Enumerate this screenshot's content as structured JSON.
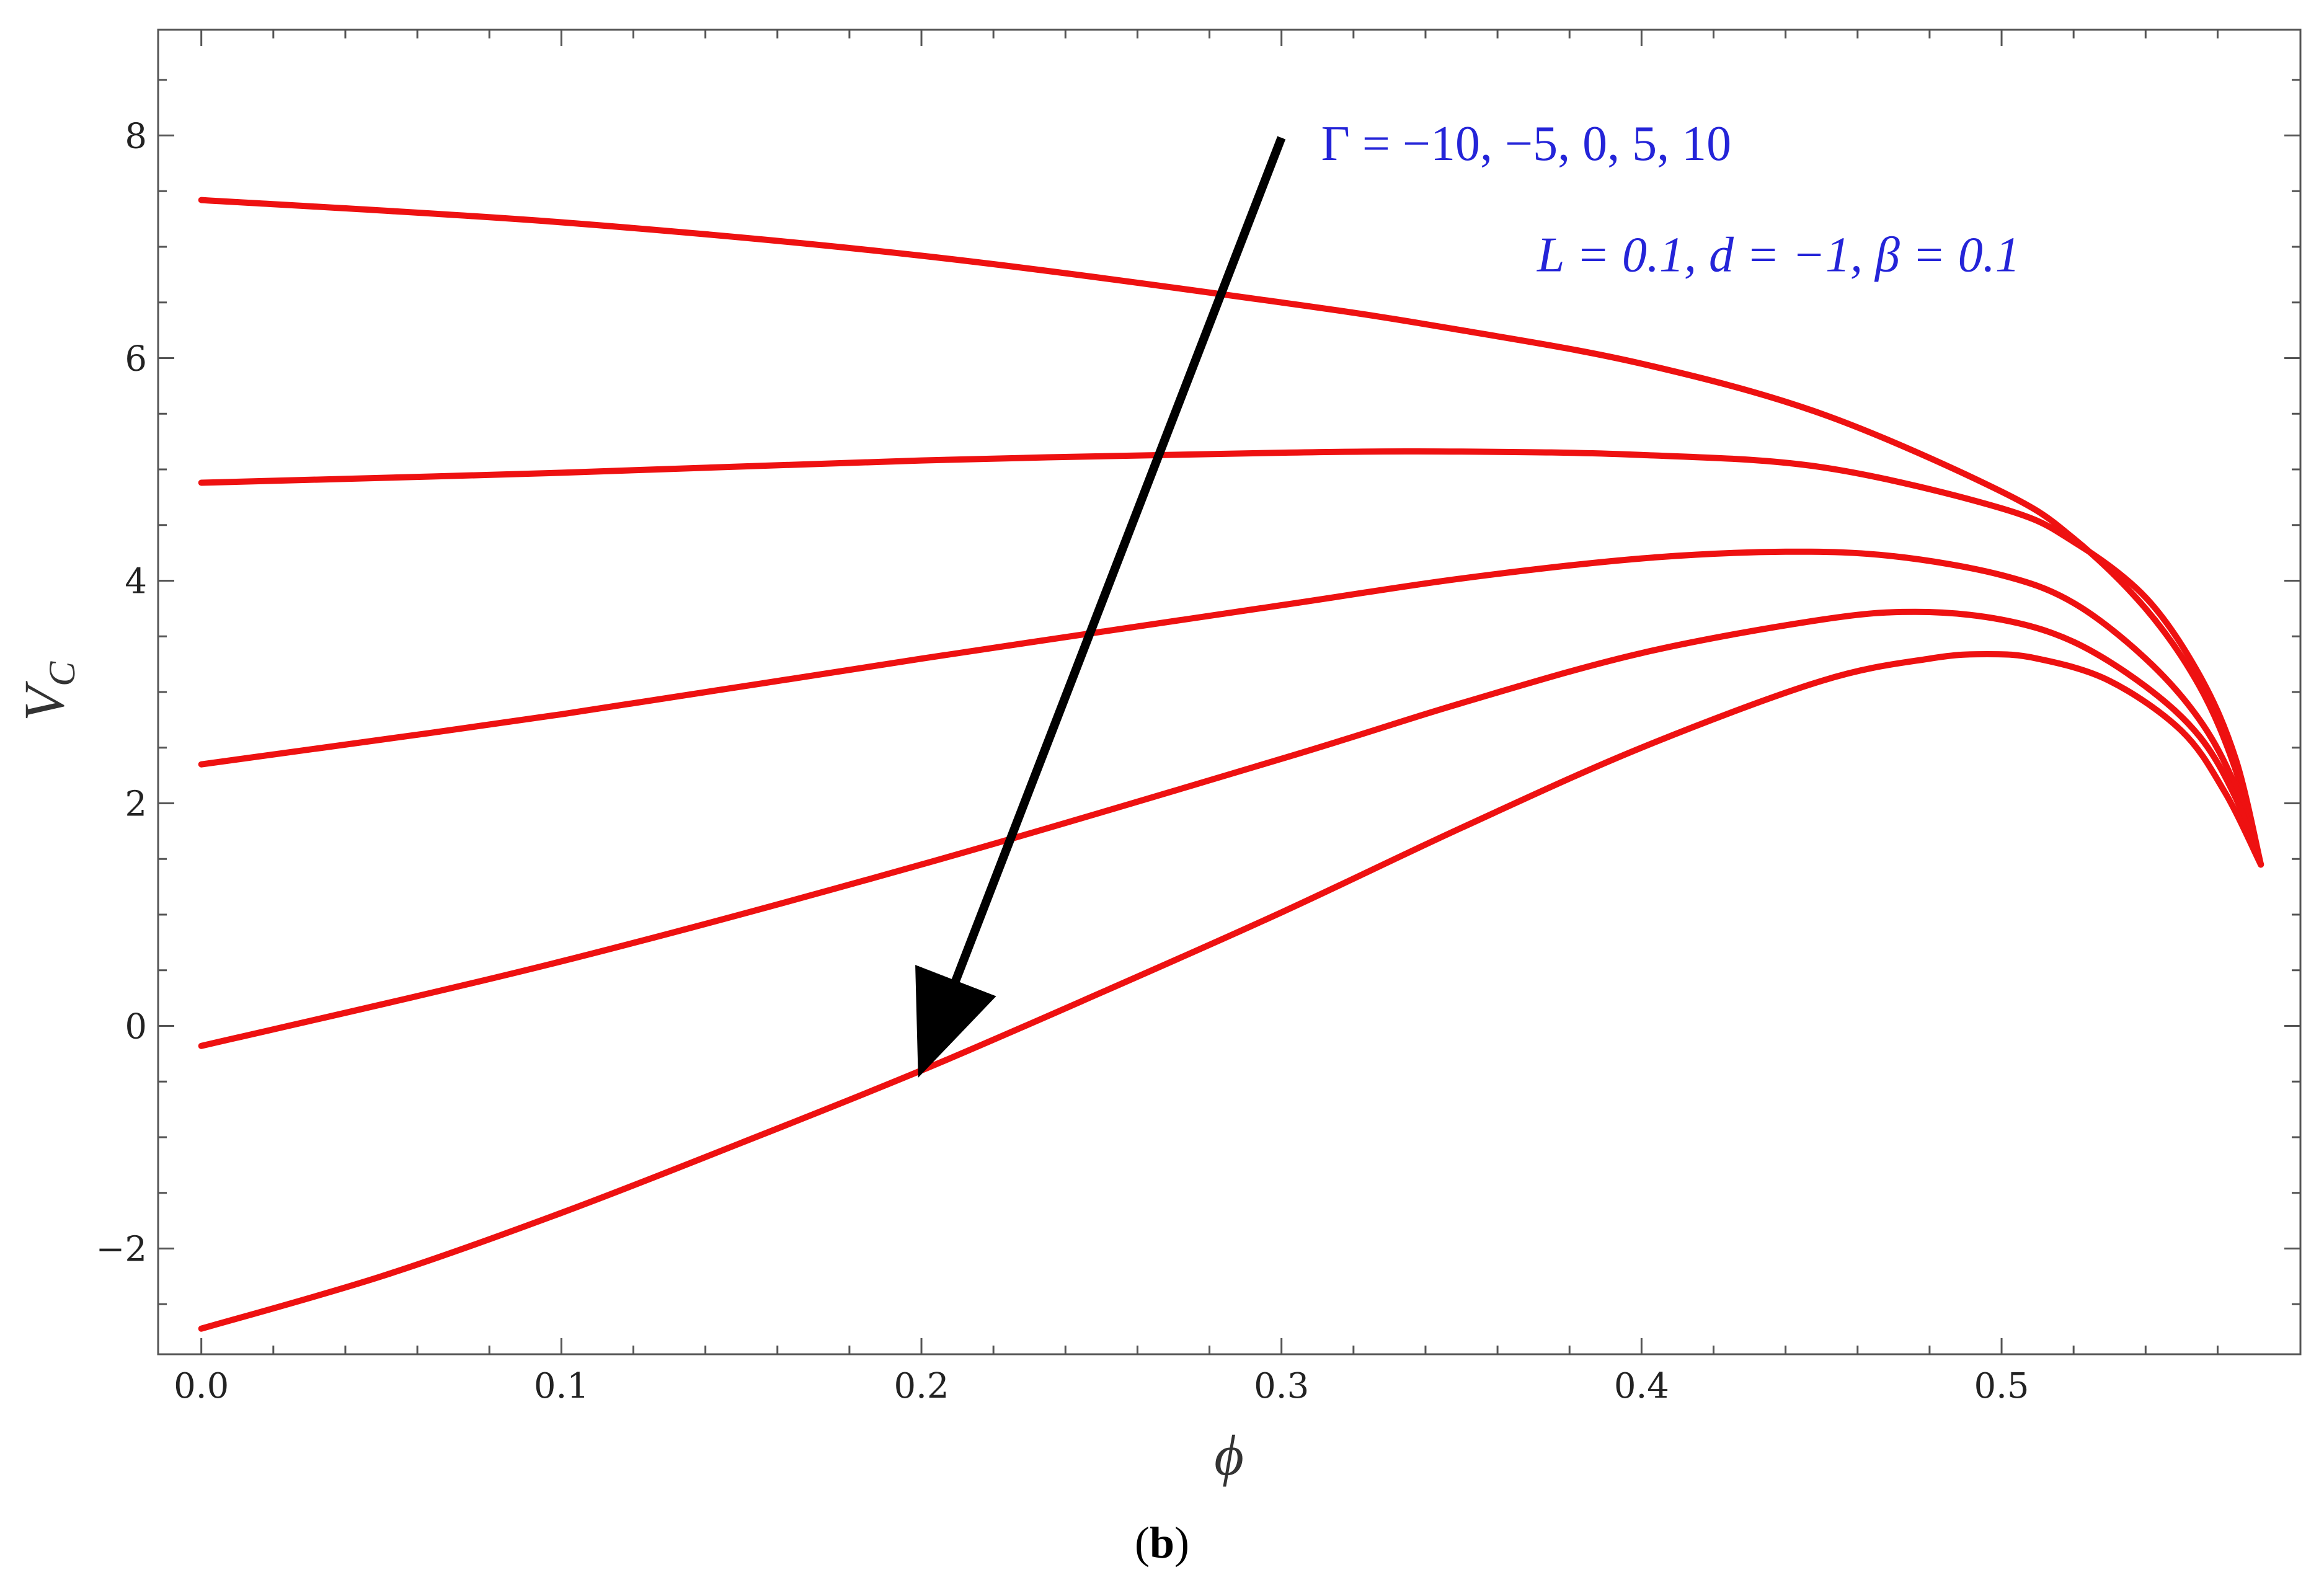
{
  "chart_data": {
    "type": "line",
    "xlabel": "ϕ",
    "ylabel_main": "V",
    "ylabel_sub": "C",
    "xlim": [
      -0.012,
      0.583
    ],
    "ylim": [
      -2.95,
      8.95
    ],
    "xticks": [
      0.0,
      0.1,
      0.2,
      0.3,
      0.4,
      0.5
    ],
    "xtick_labels": [
      "0.0",
      "0.1",
      "0.2",
      "0.3",
      "0.4",
      "0.5"
    ],
    "yticks": [
      -2,
      0,
      2,
      4,
      6,
      8
    ],
    "ytick_labels": [
      "−2",
      "0",
      "2",
      "4",
      "6",
      "8"
    ],
    "grid": false,
    "line_color": "#ee1111",
    "series": [
      {
        "x": [
          0.0,
          0.1,
          0.2,
          0.3,
          0.35,
          0.4,
          0.45,
          0.5,
          0.52,
          0.54,
          0.555,
          0.565,
          0.572
        ],
        "values": [
          7.42,
          7.22,
          6.92,
          6.5,
          6.25,
          5.95,
          5.5,
          4.8,
          4.38,
          3.75,
          3.05,
          2.3,
          1.45
        ]
      },
      {
        "x": [
          0.0,
          0.1,
          0.2,
          0.3,
          0.35,
          0.4,
          0.45,
          0.5,
          0.52,
          0.54,
          0.555,
          0.565,
          0.572
        ],
        "values": [
          4.88,
          4.97,
          5.08,
          5.15,
          5.16,
          5.13,
          5.02,
          4.65,
          4.35,
          3.85,
          3.15,
          2.4,
          1.45
        ]
      },
      {
        "x": [
          0.0,
          0.1,
          0.2,
          0.3,
          0.35,
          0.4,
          0.44,
          0.47,
          0.5,
          0.52,
          0.54,
          0.555,
          0.565,
          0.572
        ],
        "values": [
          2.35,
          2.8,
          3.3,
          3.78,
          4.02,
          4.2,
          4.26,
          4.22,
          4.05,
          3.8,
          3.3,
          2.75,
          2.15,
          1.45
        ]
      },
      {
        "x": [
          0.0,
          0.1,
          0.2,
          0.3,
          0.35,
          0.4,
          0.45,
          0.476,
          0.5,
          0.52,
          0.54,
          0.555,
          0.565,
          0.572
        ],
        "values": [
          -0.18,
          0.58,
          1.45,
          2.4,
          2.9,
          3.35,
          3.65,
          3.72,
          3.65,
          3.45,
          3.05,
          2.6,
          2.05,
          1.45
        ]
      },
      {
        "x": [
          0.0,
          0.05,
          0.1,
          0.15,
          0.2,
          0.25,
          0.3,
          0.35,
          0.4,
          0.45,
          0.48,
          0.496,
          0.51,
          0.53,
          0.55,
          0.562,
          0.572
        ],
        "values": [
          -2.72,
          -2.25,
          -1.68,
          -1.05,
          -0.4,
          0.3,
          1.02,
          1.78,
          2.5,
          3.1,
          3.3,
          3.34,
          3.3,
          3.1,
          2.65,
          2.1,
          1.45
        ]
      }
    ],
    "arrow": {
      "from": [
        0.3,
        7.98
      ],
      "to": [
        0.2,
        -0.38
      ],
      "color": "#000000"
    },
    "annotations": [
      {
        "text": "Γ  =  −10, −5, 0, 5, 10",
        "x": 0.311,
        "y": 7.78
      },
      {
        "text": "L = 0.1, d = −1, β = 0.1",
        "x": 0.371,
        "y": 6.78
      }
    ]
  },
  "caption": {
    "open": "(",
    "bold": "b",
    "close": ")"
  }
}
